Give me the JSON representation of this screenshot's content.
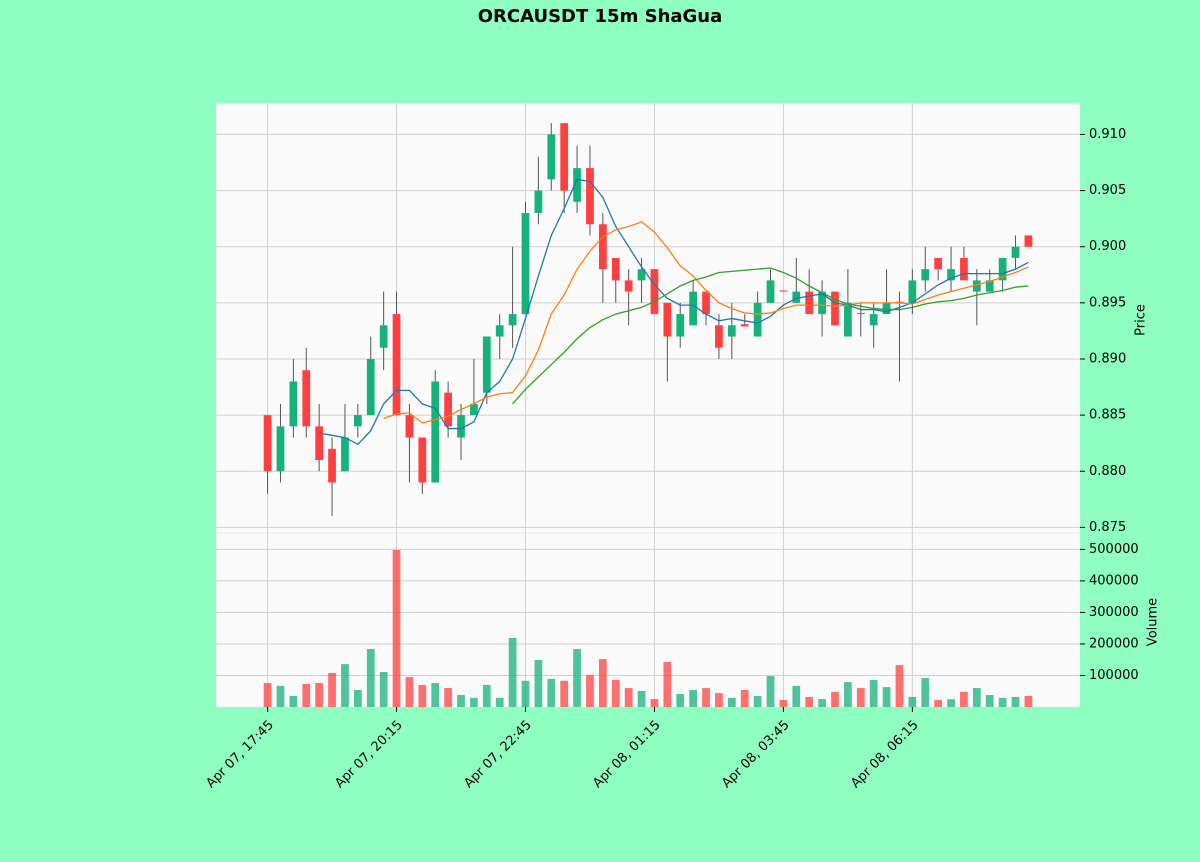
{
  "chart_data": {
    "type": "candlestick",
    "title": "ORCAUSDT 15m ShaGua",
    "ylabel": "Price",
    "volume_label": "Volume",
    "up_color": "#16b27a",
    "down_color": "#ff4040",
    "grid": true,
    "xlim": [
      -4,
      63
    ],
    "xticks": [
      {
        "value": 0,
        "label": "Apr 07, 17:45"
      },
      {
        "value": 10,
        "label": "Apr 07, 20:15"
      },
      {
        "value": 20,
        "label": "Apr 07, 22:45"
      },
      {
        "value": 30,
        "label": "Apr 08, 01:15"
      },
      {
        "value": 40,
        "label": "Apr 08, 03:45"
      },
      {
        "value": 50,
        "label": "Apr 08, 06:15"
      }
    ],
    "ylim": [
      0.8745,
      0.9128
    ],
    "yticks": [
      {
        "value": 0.875,
        "label": "0.875"
      },
      {
        "value": 0.88,
        "label": "0.880"
      },
      {
        "value": 0.885,
        "label": "0.885"
      },
      {
        "value": 0.89,
        "label": "0.890"
      },
      {
        "value": 0.895,
        "label": "0.895"
      },
      {
        "value": 0.9,
        "label": "0.900"
      },
      {
        "value": 0.905,
        "label": "0.905"
      },
      {
        "value": 0.91,
        "label": "0.910"
      }
    ],
    "volume_ylim": [
      0,
      552000
    ],
    "volume_yticks": [
      100000,
      200000,
      300000,
      400000,
      500000
    ],
    "open": [
      0.885,
      0.88,
      0.884,
      0.889,
      0.884,
      0.882,
      0.88,
      0.884,
      0.885,
      0.891,
      0.894,
      0.885,
      0.883,
      0.879,
      0.887,
      0.883,
      0.885,
      0.887,
      0.892,
      0.893,
      0.894,
      0.903,
      0.906,
      0.911,
      0.904,
      0.907,
      0.902,
      0.899,
      0.897,
      0.897,
      0.898,
      0.895,
      0.892,
      0.893,
      0.896,
      0.893,
      0.892,
      0.8931,
      0.892,
      0.895,
      0.8961,
      0.895,
      0.896,
      0.894,
      0.896,
      0.892,
      0.8941,
      0.893,
      0.894,
      0.8951,
      0.895,
      0.897,
      0.899,
      0.897,
      0.899,
      0.896,
      0.896,
      0.897,
      0.899,
      0.901
    ],
    "high": [
      0.885,
      0.886,
      0.89,
      0.891,
      0.886,
      0.883,
      0.886,
      0.886,
      0.892,
      0.896,
      0.896,
      0.886,
      0.883,
      0.889,
      0.888,
      0.886,
      0.89,
      0.892,
      0.894,
      0.9,
      0.904,
      0.908,
      0.911,
      0.911,
      0.909,
      0.909,
      0.903,
      0.899,
      0.898,
      0.899,
      0.898,
      0.895,
      0.895,
      0.897,
      0.896,
      0.894,
      0.895,
      0.894,
      0.896,
      0.898,
      0.8961,
      0.899,
      0.898,
      0.897,
      0.896,
      0.898,
      0.895,
      0.895,
      0.898,
      0.896,
      0.898,
      0.9,
      0.899,
      0.9,
      0.9,
      0.898,
      0.898,
      0.899,
      0.901,
      0.901
    ],
    "low": [
      0.878,
      0.879,
      0.883,
      0.883,
      0.88,
      0.876,
      0.88,
      0.883,
      0.885,
      0.889,
      0.885,
      0.879,
      0.878,
      0.879,
      0.883,
      0.881,
      0.885,
      0.886,
      0.89,
      0.891,
      0.894,
      0.902,
      0.905,
      0.903,
      0.903,
      0.901,
      0.895,
      0.895,
      0.893,
      0.895,
      0.894,
      0.888,
      0.891,
      0.893,
      0.893,
      0.89,
      0.89,
      0.8929,
      0.892,
      0.895,
      0.896,
      0.895,
      0.894,
      0.892,
      0.893,
      0.892,
      0.892,
      0.891,
      0.894,
      0.888,
      0.894,
      0.896,
      0.897,
      0.896,
      0.897,
      0.893,
      0.896,
      0.896,
      0.898,
      0.9
    ],
    "close": [
      0.88,
      0.884,
      0.888,
      0.884,
      0.881,
      0.879,
      0.883,
      0.885,
      0.89,
      0.893,
      0.885,
      0.883,
      0.879,
      0.888,
      0.884,
      0.885,
      0.886,
      0.892,
      0.893,
      0.894,
      0.903,
      0.905,
      0.91,
      0.905,
      0.907,
      0.902,
      0.898,
      0.897,
      0.896,
      0.898,
      0.894,
      0.892,
      0.894,
      0.896,
      0.894,
      0.891,
      0.893,
      0.8929,
      0.895,
      0.897,
      0.896,
      0.896,
      0.894,
      0.896,
      0.893,
      0.895,
      0.894,
      0.894,
      0.895,
      0.895,
      0.897,
      0.898,
      0.898,
      0.898,
      0.897,
      0.897,
      0.897,
      0.899,
      0.9,
      0.9
    ],
    "volume": [
      76000,
      67000,
      35000,
      73000,
      76000,
      108000,
      136000,
      54000,
      184000,
      111000,
      498000,
      95000,
      70000,
      76000,
      60000,
      38000,
      29000,
      70000,
      29000,
      219000,
      83000,
      149000,
      89000,
      83000,
      184000,
      102000,
      152000,
      86000,
      60000,
      51000,
      25000,
      143000,
      41000,
      54000,
      60000,
      44000,
      29000,
      54000,
      35000,
      98000,
      22000,
      67000,
      32000,
      25000,
      48000,
      79000,
      60000,
      86000,
      63000,
      133000,
      32000,
      92000,
      22000,
      25000,
      48000,
      60000,
      38000,
      29000,
      32000,
      35000
    ],
    "ma_lines": [
      {
        "color": "#1f77b4",
        "values": [
          null,
          null,
          null,
          null,
          0.8834,
          0.8832,
          0.883,
          0.8824,
          0.8836,
          0.886,
          0.8872,
          0.8872,
          0.886,
          0.8856,
          0.8838,
          0.8838,
          0.8844,
          0.887,
          0.888,
          0.89,
          0.8936,
          0.8974,
          0.901,
          0.9034,
          0.906,
          0.9058,
          0.9044,
          0.9018,
          0.9,
          0.8982,
          0.8966,
          0.8954,
          0.8948,
          0.8948,
          0.894,
          0.8934,
          0.8936,
          0.8934,
          0.8932,
          0.8938,
          0.8948,
          0.8954,
          0.8956,
          0.8958,
          0.895,
          0.8948,
          0.8944,
          0.8944,
          0.8942,
          0.8946,
          0.895,
          0.8958,
          0.8966,
          0.8972,
          0.8976,
          0.8976,
          0.8976,
          0.8976,
          0.898,
          0.8986
        ]
      },
      {
        "color": "#ff7f0e",
        "values": [
          null,
          null,
          null,
          null,
          null,
          null,
          null,
          null,
          null,
          0.8847,
          0.8851,
          0.8852,
          0.8843,
          0.8846,
          0.8849,
          0.8855,
          0.886,
          0.8866,
          0.8869,
          0.887,
          0.8885,
          0.8908,
          0.894,
          0.8957,
          0.898,
          0.8996,
          0.9009,
          0.9015,
          0.9018,
          0.9022,
          0.9013,
          0.8999,
          0.8983,
          0.8974,
          0.8961,
          0.895,
          0.8945,
          0.8941,
          0.894,
          0.8941,
          0.8945,
          0.8948,
          0.8948,
          0.8948,
          0.8947,
          0.8948,
          0.895,
          0.895,
          0.895,
          0.895,
          0.8949,
          0.8953,
          0.8957,
          0.896,
          0.8963,
          0.8966,
          0.8969,
          0.8973,
          0.8977,
          0.8982
        ]
      },
      {
        "color": "#2ca02c",
        "values": [
          null,
          null,
          null,
          null,
          null,
          null,
          null,
          null,
          null,
          null,
          null,
          null,
          null,
          null,
          null,
          null,
          null,
          null,
          null,
          0.886,
          0.8873,
          0.8884,
          0.8895,
          0.8906,
          0.8918,
          0.8928,
          0.8935,
          0.894,
          0.8943,
          0.8946,
          0.8951,
          0.8958,
          0.8965,
          0.897,
          0.8973,
          0.8977,
          0.8978,
          0.8979,
          0.898,
          0.8981,
          0.8977,
          0.8972,
          0.8965,
          0.8959,
          0.8953,
          0.8949,
          0.8947,
          0.8945,
          0.8944,
          0.8944,
          0.8946,
          0.8949,
          0.8951,
          0.8952,
          0.8954,
          0.8957,
          0.8959,
          0.8961,
          0.8964,
          0.8965
        ]
      }
    ]
  }
}
